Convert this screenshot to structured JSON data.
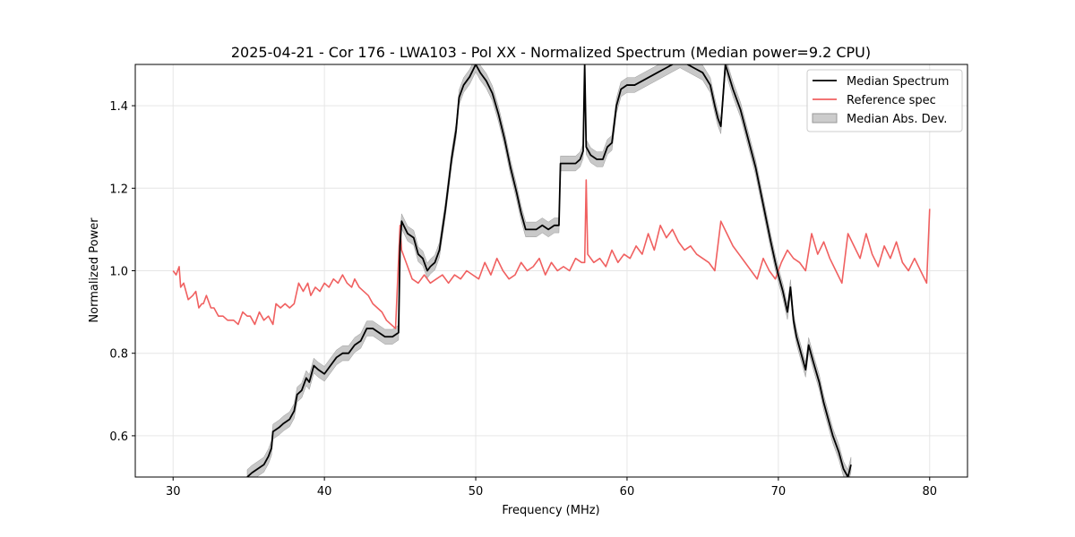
{
  "chart_data": {
    "type": "line",
    "title": "2025-04-21 - Cor 176 - LWA103 - Pol XX - Normalized Spectrum (Median power=9.2 CPU)",
    "xlabel": "Frequency (MHz)",
    "ylabel": "Normalized Power",
    "xlim": [
      27.5,
      82.5
    ],
    "ylim": [
      0.5,
      1.5
    ],
    "xticks": [
      30,
      40,
      50,
      60,
      70,
      80
    ],
    "yticks": [
      0.6,
      0.8,
      1.0,
      1.2,
      1.4
    ],
    "xtick_labels": [
      "30",
      "40",
      "50",
      "60",
      "70",
      "80"
    ],
    "ytick_labels": [
      "0.6",
      "0.8",
      "1.0",
      "1.2",
      "1.4"
    ],
    "grid": true,
    "legend_position": "top-right",
    "series": [
      {
        "name": "Median Spectrum",
        "color": "#000000",
        "x": [
          34.9,
          35.2,
          35.6,
          36.0,
          36.3,
          36.5,
          36.6,
          37.0,
          37.3,
          37.7,
          38.0,
          38.2,
          38.5,
          38.8,
          39.0,
          39.3,
          39.6,
          40.0,
          40.4,
          40.8,
          41.2,
          41.6,
          42.0,
          42.4,
          42.8,
          43.2,
          43.6,
          44.0,
          44.5,
          44.9,
          45.0,
          45.1,
          45.5,
          45.9,
          46.2,
          46.5,
          46.8,
          47.0,
          47.3,
          47.6,
          48.0,
          48.4,
          48.7,
          48.9,
          49.2,
          49.6,
          50.0,
          50.3,
          50.7,
          51.1,
          51.5,
          51.9,
          52.3,
          52.7,
          53.0,
          53.3,
          53.6,
          54.0,
          54.4,
          54.8,
          55.2,
          55.5,
          55.6,
          55.8,
          56.2,
          56.6,
          56.9,
          57.1,
          57.2,
          57.3,
          57.6,
          58.0,
          58.4,
          58.7,
          59.0,
          59.3,
          59.6,
          60.0,
          60.5,
          61.0,
          61.5,
          62.0,
          62.5,
          63.0,
          63.5,
          64.0,
          64.5,
          65.0,
          65.5,
          65.8,
          66.0,
          66.2,
          66.5,
          67.0,
          67.5,
          68.0,
          68.5,
          69.0,
          69.5,
          69.8,
          70.0,
          70.3,
          70.6,
          70.8,
          71.0,
          71.2,
          71.5,
          71.8,
          72.0,
          72.3,
          72.7,
          73.0,
          73.3,
          73.6,
          74.0,
          74.3,
          74.6,
          74.8
        ],
        "y": [
          0.5,
          0.51,
          0.52,
          0.53,
          0.55,
          0.57,
          0.61,
          0.62,
          0.63,
          0.64,
          0.66,
          0.7,
          0.71,
          0.74,
          0.73,
          0.77,
          0.76,
          0.75,
          0.77,
          0.79,
          0.8,
          0.8,
          0.82,
          0.83,
          0.86,
          0.86,
          0.85,
          0.84,
          0.84,
          0.85,
          1.06,
          1.12,
          1.09,
          1.08,
          1.04,
          1.03,
          1.0,
          1.01,
          1.02,
          1.05,
          1.15,
          1.27,
          1.34,
          1.42,
          1.45,
          1.47,
          1.5,
          1.48,
          1.46,
          1.43,
          1.38,
          1.32,
          1.25,
          1.19,
          1.14,
          1.1,
          1.1,
          1.1,
          1.11,
          1.1,
          1.11,
          1.11,
          1.26,
          1.26,
          1.26,
          1.26,
          1.27,
          1.29,
          1.5,
          1.3,
          1.28,
          1.27,
          1.27,
          1.3,
          1.31,
          1.4,
          1.44,
          1.45,
          1.45,
          1.46,
          1.47,
          1.48,
          1.49,
          1.5,
          1.51,
          1.5,
          1.49,
          1.48,
          1.45,
          1.4,
          1.37,
          1.35,
          1.5,
          1.44,
          1.39,
          1.32,
          1.25,
          1.16,
          1.07,
          1.02,
          0.99,
          0.95,
          0.9,
          0.96,
          0.88,
          0.84,
          0.8,
          0.76,
          0.82,
          0.78,
          0.73,
          0.68,
          0.64,
          0.6,
          0.56,
          0.52,
          0.5,
          0.53
        ]
      },
      {
        "name": "Reference spec",
        "color": "#f06060",
        "x": [
          30.0,
          30.2,
          30.4,
          30.5,
          30.7,
          31.0,
          31.3,
          31.5,
          31.7,
          31.9,
          32.0,
          32.2,
          32.5,
          32.7,
          33.0,
          33.3,
          33.6,
          34.0,
          34.3,
          34.6,
          34.9,
          35.1,
          35.4,
          35.7,
          36.0,
          36.3,
          36.6,
          36.8,
          37.1,
          37.4,
          37.7,
          38.0,
          38.3,
          38.6,
          38.9,
          39.1,
          39.4,
          39.7,
          40.0,
          40.3,
          40.6,
          40.9,
          41.2,
          41.5,
          41.8,
          42.0,
          42.3,
          42.6,
          42.9,
          43.2,
          43.5,
          43.8,
          44.1,
          44.4,
          44.7,
          45.0,
          45.1,
          45.4,
          45.8,
          46.2,
          46.6,
          47.0,
          47.4,
          47.8,
          48.2,
          48.6,
          49.0,
          49.4,
          49.8,
          50.2,
          50.6,
          51.0,
          51.4,
          51.8,
          52.2,
          52.6,
          53.0,
          53.4,
          53.8,
          54.2,
          54.6,
          55.0,
          55.4,
          55.8,
          56.2,
          56.6,
          57.0,
          57.2,
          57.3,
          57.4,
          57.8,
          58.2,
          58.6,
          59.0,
          59.4,
          59.8,
          60.2,
          60.6,
          61.0,
          61.4,
          61.8,
          62.2,
          62.6,
          63.0,
          63.4,
          63.8,
          64.2,
          64.6,
          65.0,
          65.4,
          65.8,
          66.2,
          66.6,
          67.0,
          67.4,
          67.8,
          68.2,
          68.6,
          69.0,
          69.4,
          69.8,
          70.2,
          70.6,
          71.0,
          71.4,
          71.8,
          72.2,
          72.6,
          73.0,
          73.4,
          73.8,
          74.2,
          74.6,
          75.0,
          75.4,
          75.8,
          76.2,
          76.6,
          77.0,
          77.4,
          77.8,
          78.2,
          78.6,
          79.0,
          79.4,
          79.8,
          80.0
        ],
        "y": [
          1.0,
          0.99,
          1.01,
          0.96,
          0.97,
          0.93,
          0.94,
          0.95,
          0.91,
          0.92,
          0.92,
          0.94,
          0.91,
          0.91,
          0.89,
          0.89,
          0.88,
          0.88,
          0.87,
          0.9,
          0.89,
          0.89,
          0.87,
          0.9,
          0.88,
          0.89,
          0.87,
          0.92,
          0.91,
          0.92,
          0.91,
          0.92,
          0.97,
          0.95,
          0.97,
          0.94,
          0.96,
          0.95,
          0.97,
          0.96,
          0.98,
          0.97,
          0.99,
          0.97,
          0.96,
          0.98,
          0.96,
          0.95,
          0.94,
          0.92,
          0.91,
          0.9,
          0.88,
          0.87,
          0.86,
          1.11,
          1.05,
          1.02,
          0.98,
          0.97,
          0.99,
          0.97,
          0.98,
          0.99,
          0.97,
          0.99,
          0.98,
          1.0,
          0.99,
          0.98,
          1.02,
          0.99,
          1.03,
          1.0,
          0.98,
          0.99,
          1.02,
          1.0,
          1.01,
          1.03,
          0.99,
          1.02,
          1.0,
          1.01,
          1.0,
          1.03,
          1.02,
          1.02,
          1.22,
          1.04,
          1.02,
          1.03,
          1.01,
          1.05,
          1.02,
          1.04,
          1.03,
          1.06,
          1.04,
          1.09,
          1.05,
          1.11,
          1.08,
          1.1,
          1.07,
          1.05,
          1.06,
          1.04,
          1.03,
          1.02,
          1.0,
          1.12,
          1.09,
          1.06,
          1.04,
          1.02,
          1.0,
          0.98,
          1.03,
          1.0,
          0.98,
          1.02,
          1.05,
          1.03,
          1.02,
          1.0,
          1.09,
          1.04,
          1.07,
          1.03,
          1.0,
          0.97,
          1.09,
          1.06,
          1.03,
          1.09,
          1.04,
          1.01,
          1.06,
          1.03,
          1.07,
          1.02,
          1.0,
          1.03,
          1.0,
          0.97,
          1.15
        ]
      }
    ],
    "band": {
      "name": "Median Abs. Dev.",
      "color": "#b0b0b0",
      "half_width": 0.018
    }
  }
}
